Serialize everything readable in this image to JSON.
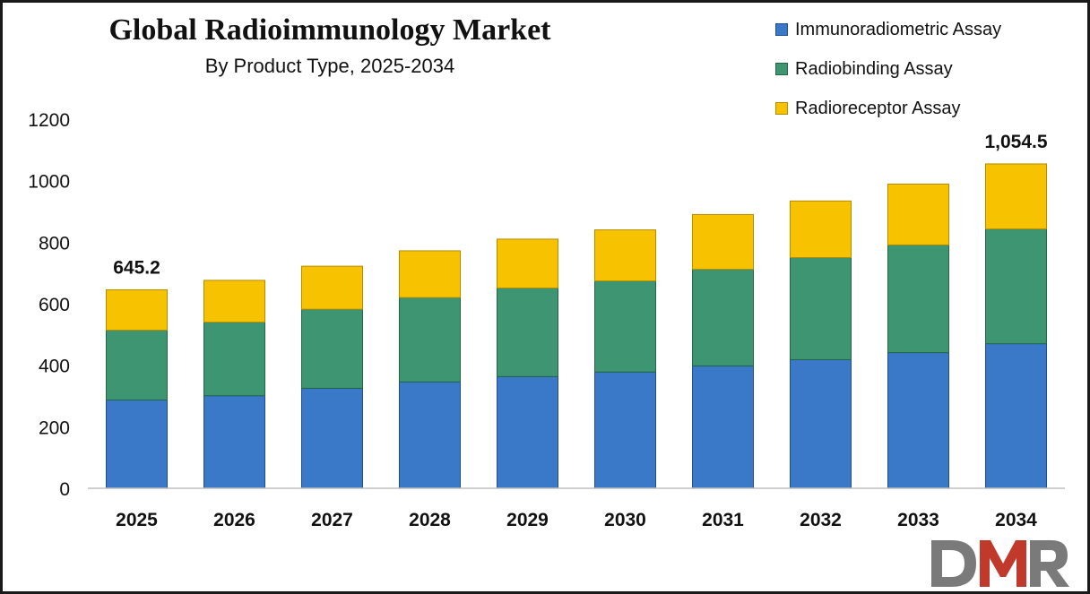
{
  "chart_data": {
    "type": "bar",
    "stacked": true,
    "title": "Global Radioimmunology Market",
    "subtitle": "By Product Type, 2025-2034",
    "xlabel": "",
    "ylabel": "",
    "ylim": [
      0,
      1200
    ],
    "yticks": [
      0,
      200,
      400,
      600,
      800,
      1000,
      1200
    ],
    "grid": false,
    "legend_position": "top-right",
    "categories": [
      "2025",
      "2026",
      "2027",
      "2028",
      "2029",
      "2030",
      "2031",
      "2032",
      "2033",
      "2034"
    ],
    "series": [
      {
        "name": "Immunoradiometric Assay",
        "color": "#3a78c8",
        "values": [
          287,
          301,
          325,
          346,
          363,
          378,
          398,
          418,
          441,
          470
        ]
      },
      {
        "name": "Radiobinding Assay",
        "color": "#3d9571",
        "values": [
          227,
          239,
          257,
          274,
          288,
          296,
          314,
          332,
          350,
          373
        ]
      },
      {
        "name": "Radioreceptor Assay",
        "color": "#f7c200",
        "values": [
          131.2,
          136,
          140,
          152,
          159,
          166,
          178,
          184,
          198,
          211.5
        ]
      }
    ],
    "annotations": [
      {
        "category": "2025",
        "text": "645.2"
      },
      {
        "category": "2034",
        "text": "1,054.5"
      }
    ]
  },
  "logo": {
    "text": "DMR",
    "colors": [
      "#7a7a7a",
      "#c0392b",
      "#7a7a7a"
    ]
  }
}
